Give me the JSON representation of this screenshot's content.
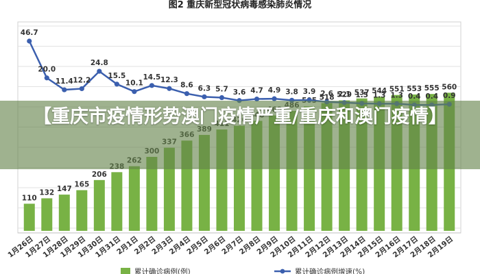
{
  "chart_title": "图2    重庆新型冠状病毒感染肺炎情况",
  "overlay_headline": "【重庆市疫情形势澳门疫情严重/重庆和澳门疫情】",
  "legend": {
    "bars_label": "累计确诊病例(例)",
    "line_label": "累计确诊病例增速(%)"
  },
  "colors": {
    "bar": "#78b245",
    "line": "#3b5fae",
    "overlay": "#64824b"
  },
  "chart_data": {
    "type": "bar+line",
    "title": "图2    重庆新型冠状病毒感染肺炎情况",
    "categories": [
      "1月26日",
      "1月27日",
      "1月28日",
      "1月29日",
      "1月30日",
      "1月31日",
      "2月1日",
      "2月2日",
      "2月3日",
      "2月4日",
      "2月5日",
      "2月6日",
      "2月7日",
      "2月8日",
      "2月9日",
      "2月10日",
      "2月11日",
      "2月12日",
      "2月13日",
      "2月14日",
      "2月15日",
      "2月16日",
      "2月17日",
      "2月18日",
      "2月19日"
    ],
    "series": [
      {
        "name": "累计确诊病例(例)",
        "type": "bar",
        "values": [
          110,
          132,
          147,
          165,
          206,
          238,
          262,
          300,
          337,
          366,
          389,
          411,
          426,
          446,
          468,
          486,
          505,
          518,
          529,
          537,
          544,
          551,
          553,
          555,
          560
        ]
      },
      {
        "name": "累计确诊病例增速(%)",
        "type": "line",
        "values": [
          46.7,
          20.0,
          11.4,
          12.2,
          24.8,
          15.5,
          10.1,
          14.5,
          12.3,
          8.6,
          6.3,
          5.7,
          3.6,
          4.7,
          4.9,
          3.8,
          3.9,
          2.6,
          2.1,
          1.5,
          1.3,
          1.3,
          0.4,
          0.4,
          0.9
        ]
      }
    ],
    "bar_labels": [
      "110",
      "132",
      "147",
      "165",
      "206",
      "238",
      "262",
      "300",
      "337",
      "366",
      "389",
      "411",
      "426",
      "446",
      "468",
      "486",
      "505",
      "518",
      "529",
      "537",
      "544",
      "551",
      "553",
      "555",
      "560"
    ],
    "line_labels": [
      "46.7",
      "20.0",
      "11.4",
      "12.2",
      "24.8",
      "15.5",
      "10.1",
      "14.5",
      "12.3",
      "8.6",
      "6.3",
      "5.7",
      "3.6",
      "4.7",
      "4.9",
      "3.8",
      "3.9",
      "2.6",
      "2.1",
      "1.5",
      "1.3",
      "1.3",
      "0.4",
      "0.4",
      "0.9"
    ],
    "grid": true,
    "legend_position": "bottom"
  }
}
